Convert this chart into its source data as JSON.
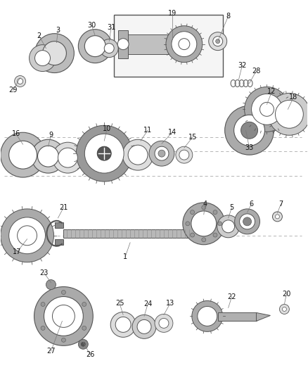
{
  "bg_color": "#ffffff",
  "fig_width": 4.38,
  "fig_height": 5.33,
  "dpi": 100,
  "lc": "#444444",
  "gray_dark": "#888888",
  "gray_med": "#aaaaaa",
  "gray_light": "#cccccc",
  "gray_xlight": "#e8e8e8",
  "white": "#ffffff"
}
